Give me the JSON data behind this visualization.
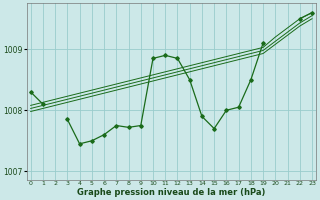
{
  "title": "Graphe pression niveau de la mer (hPa)",
  "bg_color": "#cce8e8",
  "grid_color": "#99cccc",
  "line_color": "#1a6b1a",
  "marker_color": "#1a6b1a",
  "xlabel_color": "#1a4a1a",
  "hours": [
    0,
    1,
    2,
    3,
    4,
    5,
    6,
    7,
    8,
    9,
    10,
    11,
    12,
    13,
    14,
    15,
    16,
    17,
    18,
    19,
    20,
    21,
    22,
    23
  ],
  "main_series": [
    1008.3,
    1008.1,
    null,
    1007.85,
    1007.45,
    1007.5,
    1007.6,
    1007.75,
    1007.72,
    1007.75,
    1008.85,
    1008.9,
    1008.85,
    1008.5,
    1007.9,
    1007.7,
    1008.0,
    1008.05,
    1008.5,
    1009.1,
    null,
    null,
    1009.5,
    1009.6
  ],
  "trend_line1": [
    1008.08,
    1008.13,
    1008.18,
    1008.23,
    1008.28,
    1008.33,
    1008.38,
    1008.43,
    1008.48,
    1008.53,
    1008.58,
    1008.63,
    1008.68,
    1008.73,
    1008.78,
    1008.83,
    1008.88,
    1008.93,
    1008.98,
    1009.03,
    1009.2,
    1009.35,
    1009.5,
    1009.6
  ],
  "trend_line2": [
    1008.03,
    1008.08,
    1008.13,
    1008.18,
    1008.23,
    1008.28,
    1008.33,
    1008.38,
    1008.43,
    1008.48,
    1008.53,
    1008.58,
    1008.63,
    1008.68,
    1008.73,
    1008.78,
    1008.83,
    1008.88,
    1008.93,
    1008.98,
    1009.13,
    1009.28,
    1009.43,
    1009.55
  ],
  "trend_line3": [
    1007.98,
    1008.03,
    1008.08,
    1008.13,
    1008.18,
    1008.23,
    1008.28,
    1008.33,
    1008.38,
    1008.43,
    1008.48,
    1008.53,
    1008.58,
    1008.63,
    1008.68,
    1008.73,
    1008.78,
    1008.83,
    1008.88,
    1008.93,
    1009.08,
    1009.23,
    1009.38,
    1009.5
  ],
  "ylim": [
    1006.85,
    1009.75
  ],
  "yticks": [
    1007,
    1008,
    1009
  ],
  "xlim": [
    -0.3,
    23.3
  ]
}
